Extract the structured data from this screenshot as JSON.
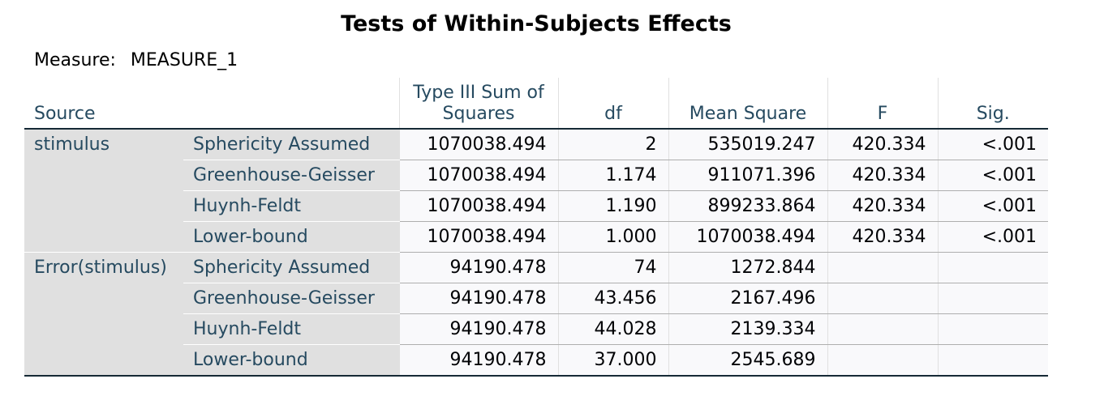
{
  "title": "Tests of Within-Subjects Effects",
  "measure": {
    "label": "Measure:",
    "value": "MEASURE_1"
  },
  "columns": {
    "source": "Source",
    "ss": "Type III Sum of Squares",
    "df": "df",
    "ms": "Mean Square",
    "f": "F",
    "sig": "Sig."
  },
  "groups": [
    {
      "source": "stimulus",
      "rows": [
        {
          "correction": "Sphericity Assumed",
          "ss": "1070038.494",
          "df": "2",
          "ms": "535019.247",
          "f": "420.334",
          "sig": "<.001"
        },
        {
          "correction": "Greenhouse-Geisser",
          "ss": "1070038.494",
          "df": "1.174",
          "ms": "911071.396",
          "f": "420.334",
          "sig": "<.001"
        },
        {
          "correction": "Huynh-Feldt",
          "ss": "1070038.494",
          "df": "1.190",
          "ms": "899233.864",
          "f": "420.334",
          "sig": "<.001"
        },
        {
          "correction": "Lower-bound",
          "ss": "1070038.494",
          "df": "1.000",
          "ms": "1070038.494",
          "f": "420.334",
          "sig": "<.001"
        }
      ]
    },
    {
      "source": "Error(stimulus)",
      "rows": [
        {
          "correction": "Sphericity Assumed",
          "ss": "94190.478",
          "df": "74",
          "ms": "1272.844",
          "f": "",
          "sig": ""
        },
        {
          "correction": "Greenhouse-Geisser",
          "ss": "94190.478",
          "df": "43.456",
          "ms": "2167.496",
          "f": "",
          "sig": ""
        },
        {
          "correction": "Huynh-Feldt",
          "ss": "94190.478",
          "df": "44.028",
          "ms": "2139.334",
          "f": "",
          "sig": ""
        },
        {
          "correction": "Lower-bound",
          "ss": "94190.478",
          "df": "37.000",
          "ms": "2545.689",
          "f": "",
          "sig": ""
        }
      ]
    }
  ]
}
